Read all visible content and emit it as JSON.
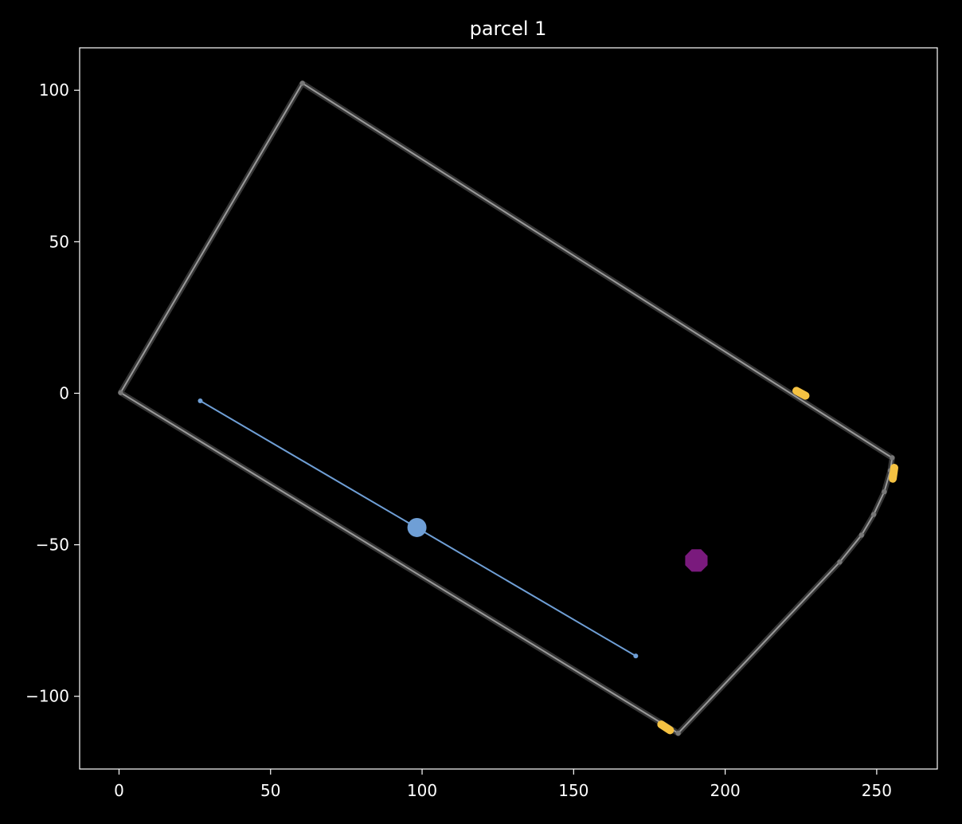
{
  "chart_data": {
    "type": "scatter",
    "title": "parcel 1",
    "xlabel": "",
    "ylabel": "",
    "xlim": [
      -13,
      270
    ],
    "ylim": [
      -124,
      114
    ],
    "x_ticks": [
      0,
      50,
      100,
      150,
      200,
      250
    ],
    "y_ticks": [
      100,
      50,
      0,
      -50,
      -100
    ],
    "x_tick_labels": [
      "0",
      "50",
      "100",
      "150",
      "200",
      "250"
    ],
    "y_tick_labels": [
      "100",
      "50",
      "0",
      "−50",
      "−100"
    ],
    "grid": false,
    "background": "#000000",
    "colors": {
      "boundary": "#9a9a9a",
      "line": "#6f9fd6",
      "marker": "#6f9fd6",
      "octagon": "#7a1a7d",
      "access": "#f5c242",
      "axes": "#ffffff"
    },
    "boundary": [
      {
        "x": 0.5,
        "y": 0.2
      },
      {
        "x": 60.5,
        "y": 102.3
      },
      {
        "x": 255.1,
        "y": -21.3
      },
      {
        "x": 254.5,
        "y": -25.5
      },
      {
        "x": 252.5,
        "y": -32.5
      },
      {
        "x": 249,
        "y": -40
      },
      {
        "x": 245,
        "y": -46.8
      },
      {
        "x": 237.8,
        "y": -55.7
      },
      {
        "x": 184.5,
        "y": -112.2
      },
      {
        "x": 0.5,
        "y": 0.2
      }
    ],
    "line_segment": [
      {
        "x": 26.8,
        "y": -2.5
      },
      {
        "x": 170.5,
        "y": -86.7
      }
    ],
    "big_marker": {
      "x": 98.3,
      "y": -44.3
    },
    "octagon": {
      "x": 190.5,
      "y": -55.2,
      "r": 4
    },
    "access_points": [
      {
        "x1": 223.5,
        "y1": 0.8,
        "x2": 226.5,
        "y2": -0.8
      },
      {
        "x1": 255.8,
        "y1": -24.6,
        "x2": 255.3,
        "y2": -28.2
      },
      {
        "x1": 178.9,
        "y1": -109.3,
        "x2": 181.8,
        "y2": -111.2
      }
    ]
  }
}
